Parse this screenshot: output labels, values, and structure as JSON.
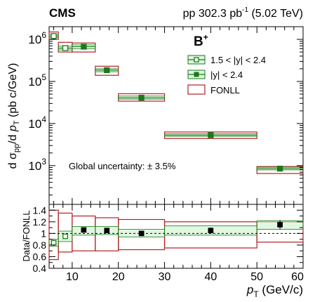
{
  "header": {
    "experiment": "CMS",
    "lumi_prefix": "pp 302.3 pb",
    "lumi_sup": "-1",
    "lumi_suffix": " (5.02 TeV)"
  },
  "chart_data": [
    {
      "type": "scatter",
      "panel": "main",
      "particle": "B",
      "particle_sup": "+",
      "ylabel": "d σpp/d pT (pb c/GeV)",
      "yscale": "log",
      "ylim": [
        120,
        2000000
      ],
      "xlim": [
        5,
        60
      ],
      "ytick_labels": [
        {
          "base": "10",
          "exp": "3",
          "value": 1000
        },
        {
          "base": "10",
          "exp": "4",
          "value": 10000
        },
        {
          "base": "10",
          "exp": "5",
          "value": 100000
        },
        {
          "base": "10",
          "exp": "6",
          "value": 1000000
        }
      ],
      "annotation": "Global uncertainty: ± 3.5%",
      "legend_position": "top-right",
      "legend": [
        {
          "label": "1.5 < |y| < 2.4",
          "marker": "open-square",
          "color": "#1a7a1a"
        },
        {
          "label": "|y| < 2.4",
          "marker": "filled-square",
          "color": "#1a7a1a"
        },
        {
          "label": "FONLL",
          "marker": "box",
          "color": "#b22222"
        }
      ],
      "series": [
        {
          "name": "1.5 < |y| < 2.4",
          "marker": "open",
          "points": [
            {
              "x": 6,
              "xlo": 5,
              "xhi": 7,
              "y": 1200000,
              "syst_lo": 1100000,
              "syst_hi": 1320000,
              "fonll_lo": 1000000,
              "fonll_hi": 1500000
            },
            {
              "x": 8.5,
              "xlo": 7,
              "xhi": 10,
              "y": 620000,
              "syst_lo": 560000,
              "syst_hi": 690000,
              "fonll_lo": 500000,
              "fonll_hi": 850000
            }
          ]
        },
        {
          "name": "|y| < 2.4",
          "marker": "filled",
          "points": [
            {
              "x": 12.5,
              "xlo": 10,
              "xhi": 15,
              "y": 670000,
              "syst_lo": 600000,
              "syst_hi": 740000,
              "fonll_lo": 500000,
              "fonll_hi": 820000
            },
            {
              "x": 17.5,
              "xlo": 15,
              "xhi": 20,
              "y": 185000,
              "syst_lo": 170000,
              "syst_hi": 200000,
              "fonll_lo": 140000,
              "fonll_hi": 230000
            },
            {
              "x": 25,
              "xlo": 20,
              "xhi": 30,
              "y": 41000,
              "syst_lo": 38000,
              "syst_hi": 45000,
              "fonll_lo": 34000,
              "fonll_hi": 51000
            },
            {
              "x": 40,
              "xlo": 30,
              "xhi": 50,
              "y": 5300,
              "syst_lo": 4950,
              "syst_hi": 5700,
              "fonll_lo": 4400,
              "fonll_hi": 6300
            },
            {
              "x": 55,
              "xlo": 50,
              "xhi": 60,
              "y": 850,
              "syst_lo": 790,
              "syst_hi": 920,
              "fonll_lo": 650,
              "fonll_hi": 950
            }
          ]
        }
      ]
    },
    {
      "type": "scatter",
      "panel": "ratio",
      "ylabel": "Data/FONLL",
      "xlabel": "pT (GeV/c)",
      "xlim": [
        5,
        60
      ],
      "ylim": [
        0.4,
        1.5
      ],
      "xticks": [
        10,
        20,
        30,
        40,
        50,
        60
      ],
      "yticks": [
        "0.4",
        "0.6",
        "0.8",
        "1",
        "1.2",
        "1.4"
      ],
      "reference_line": 1.0,
      "points": [
        {
          "x": 6,
          "xlo": 5,
          "xhi": 7,
          "y": 0.84,
          "err": 0.05,
          "syst_lo": 0.78,
          "syst_hi": 0.9,
          "fonll_lo": 0.55,
          "fonll_hi": 1.4,
          "marker": "open"
        },
        {
          "x": 8.5,
          "xlo": 7,
          "xhi": 10,
          "y": 0.95,
          "err": 0.04,
          "syst_lo": 0.86,
          "syst_hi": 1.04,
          "fonll_lo": 0.68,
          "fonll_hi": 1.35,
          "marker": "open"
        },
        {
          "x": 12.5,
          "xlo": 10,
          "xhi": 15,
          "y": 1.06,
          "err": 0.04,
          "syst_lo": 0.97,
          "syst_hi": 1.12,
          "fonll_lo": 0.7,
          "fonll_hi": 1.3,
          "marker": "filled"
        },
        {
          "x": 17.5,
          "xlo": 15,
          "xhi": 20,
          "y": 1.05,
          "err": 0.03,
          "syst_lo": 0.98,
          "syst_hi": 1.12,
          "fonll_lo": 0.7,
          "fonll_hi": 1.27,
          "marker": "filled"
        },
        {
          "x": 25,
          "xlo": 20,
          "xhi": 30,
          "y": 1.0,
          "err": 0.03,
          "syst_lo": 0.94,
          "syst_hi": 1.07,
          "fonll_lo": 0.72,
          "fonll_hi": 1.24,
          "marker": "filled"
        },
        {
          "x": 40,
          "xlo": 30,
          "xhi": 50,
          "y": 1.05,
          "err": 0.05,
          "syst_lo": 0.97,
          "syst_hi": 1.13,
          "fonll_lo": 0.75,
          "fonll_hi": 1.2,
          "marker": "filled"
        },
        {
          "x": 55,
          "xlo": 50,
          "xhi": 60,
          "y": 1.15,
          "err": 0.08,
          "syst_lo": 1.07,
          "syst_hi": 1.22,
          "fonll_lo": 0.85,
          "fonll_hi": 1.2,
          "marker": "filled"
        }
      ]
    }
  ]
}
